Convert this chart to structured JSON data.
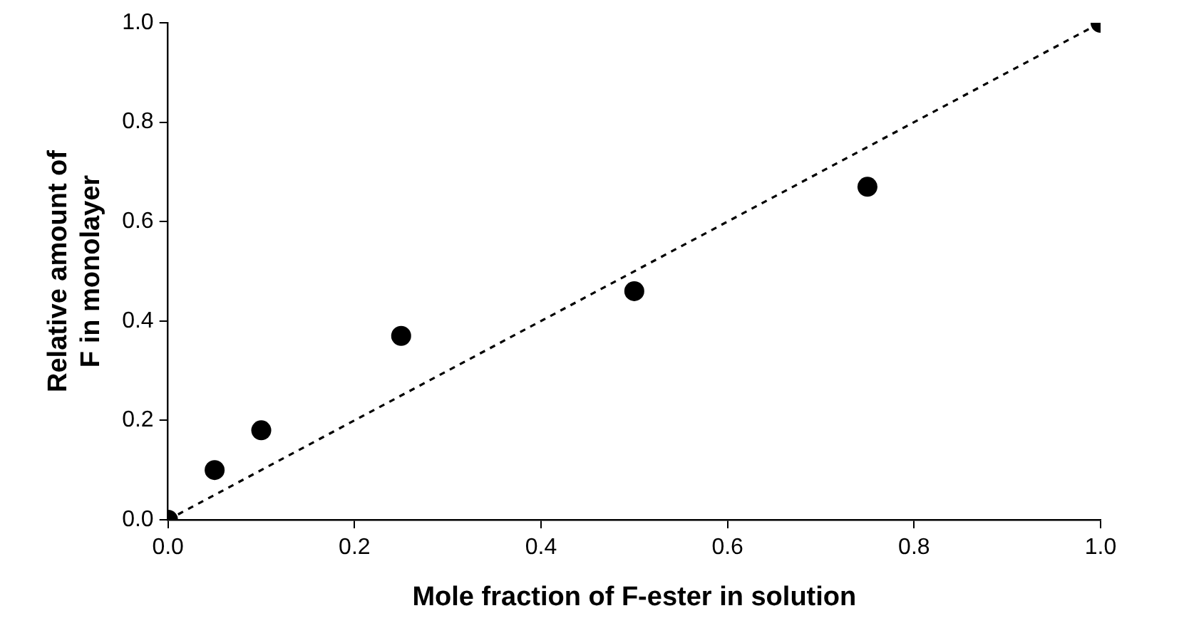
{
  "chart_data": {
    "type": "scatter",
    "xlabel": "Mole fraction of F-ester in solution",
    "ylabel": "Relative amount of\nF in monolayer",
    "xlim": [
      0,
      1
    ],
    "xticks": [
      {
        "value": 0,
        "label": "0.0"
      },
      {
        "value": 0.2,
        "label": "0.2"
      },
      {
        "value": 0.4,
        "label": "0.4"
      },
      {
        "value": 0.6,
        "label": "0.6"
      },
      {
        "value": 0.8,
        "label": "0.8"
      },
      {
        "value": 1,
        "label": "1.0"
      }
    ],
    "ylim": [
      0,
      1
    ],
    "yticks": [
      {
        "value": 0,
        "label": "0.0"
      },
      {
        "value": 0.2,
        "label": "0.2"
      },
      {
        "value": 0.4,
        "label": "0.4"
      },
      {
        "value": 0.6,
        "label": "0.6"
      },
      {
        "value": 0.8,
        "label": "0.8"
      },
      {
        "value": 1,
        "label": "1.0"
      }
    ],
    "grid": false,
    "legend": false,
    "series": [
      {
        "type": "line",
        "color": "#000000",
        "x": [
          0,
          1
        ],
        "values": [
          0,
          1
        ],
        "line_style": "dashed",
        "marker": "none"
      },
      {
        "type": "scatter",
        "color": "#000000",
        "x": [
          0,
          0.05,
          0.1,
          0.25,
          0.5,
          0.75,
          1
        ],
        "values": [
          0,
          0.1,
          0.18,
          0.37,
          0.46,
          0.67,
          1
        ],
        "marker": "circle"
      }
    ]
  }
}
